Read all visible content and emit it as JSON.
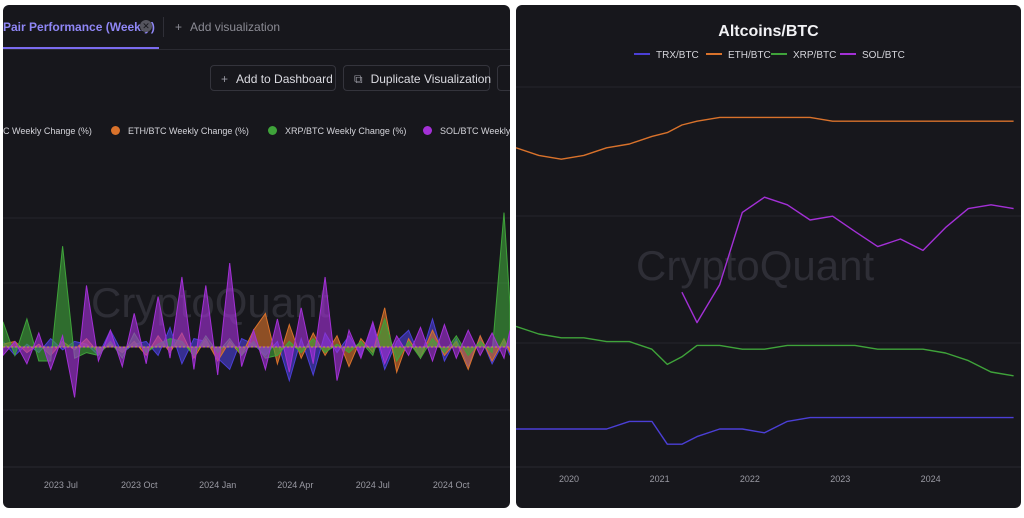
{
  "left_panel": {
    "tabs": [
      {
        "label": "Pair Performance (Weekly)",
        "active": true
      },
      {
        "label": "Add visualization",
        "active": false
      }
    ],
    "toolbar": {
      "add_to_dashboard": "Add to Dashboard",
      "duplicate_visualization": "Duplicate Visualization"
    },
    "watermark": "CryptoQuant"
  },
  "right_panel": {
    "watermark": "CryptoQuant"
  },
  "colors": {
    "trx": "#4b3fd6",
    "eth": "#d9722b",
    "xrp": "#3fa33a",
    "sol": "#a330d6",
    "tab_accent": "#7b6cf0",
    "background": "#17171c"
  },
  "icons": [
    "close-icon",
    "plus-icon",
    "duplicate-icon"
  ],
  "chart_data": [
    {
      "type": "area",
      "title": "Pair Performance (Weekly)",
      "legend": [
        "TRX/BTC Weekly Change (%)",
        "ETH/BTC Weekly Change (%)",
        "XRP/BTC Weekly Change (%)",
        "SOL/BTC Weekly Change (%)"
      ],
      "legend_visible": [
        "C Weekly Change (%)",
        "ETH/BTC Weekly Change (%)",
        "XRP/BTC Weekly Change (%)",
        "SOL/BTC Weekly C"
      ],
      "legend_placement": "top",
      "x_ticks": [
        "2023 Jul",
        "2023 Oct",
        "2024 Jan",
        "2024 Apr",
        "2024 Jul",
        "2024 Oct"
      ],
      "grid": true,
      "x_range": [
        "2023-04-24",
        "2024-12-09"
      ],
      "ylim": [
        -25,
        60
      ],
      "x": [
        "2023-04-24",
        "2023-05-08",
        "2023-05-22",
        "2023-06-05",
        "2023-06-19",
        "2023-07-03",
        "2023-07-17",
        "2023-07-31",
        "2023-08-14",
        "2023-08-28",
        "2023-09-11",
        "2023-09-25",
        "2023-10-09",
        "2023-10-23",
        "2023-11-06",
        "2023-11-20",
        "2023-12-04",
        "2023-12-18",
        "2024-01-01",
        "2024-01-15",
        "2024-01-29",
        "2024-02-12",
        "2024-02-26",
        "2024-03-11",
        "2024-03-25",
        "2024-04-08",
        "2024-04-22",
        "2024-05-06",
        "2024-05-20",
        "2024-06-03",
        "2024-06-17",
        "2024-07-01",
        "2024-07-15",
        "2024-07-29",
        "2024-08-12",
        "2024-08-26",
        "2024-09-09",
        "2024-09-23",
        "2024-10-07",
        "2024-10-21",
        "2024-11-04",
        "2024-11-18",
        "2024-12-02",
        "2024-12-09"
      ],
      "series": [
        {
          "name": "TRX/BTC Weekly Change (%)",
          "values": [
            2,
            -3,
            1,
            -2,
            3,
            -1,
            2,
            1,
            -3,
            6,
            -2,
            1,
            2,
            -3,
            7,
            -6,
            3,
            2,
            -4,
            -8,
            3,
            1,
            -3,
            2,
            -12,
            3,
            -10,
            5,
            -2,
            4,
            -3,
            8,
            -8,
            2,
            6,
            -4,
            10,
            -5,
            3,
            -7,
            4,
            -6,
            2,
            -3
          ]
        },
        {
          "name": "ETH/BTC Weekly Change (%)",
          "values": [
            1,
            2,
            -2,
            1,
            -3,
            2,
            -1,
            3,
            -2,
            1,
            -2,
            2,
            -3,
            4,
            -2,
            5,
            -4,
            3,
            -5,
            2,
            -3,
            6,
            12,
            -6,
            8,
            -4,
            5,
            -3,
            4,
            -7,
            3,
            -2,
            14,
            -9,
            3,
            -4,
            6,
            -3,
            2,
            -8,
            4,
            -5,
            3,
            -2
          ]
        },
        {
          "name": "XRP/BTC Weekly Change (%)",
          "values": [
            9,
            -3,
            10,
            -5,
            -5,
            36,
            -4,
            -2,
            -3,
            2,
            -4,
            5,
            -2,
            1,
            3,
            2,
            -3,
            4,
            -2,
            3,
            -3,
            2,
            -4,
            -3,
            2,
            -2,
            3,
            -2,
            1,
            -2,
            2,
            -3,
            10,
            -5,
            2,
            -4,
            3,
            -2,
            4,
            -3,
            2,
            -2,
            48,
            15
          ]
        },
        {
          "name": "SOL/BTC Weekly Change (%)",
          "values": [
            -3,
            2,
            -6,
            5,
            -8,
            4,
            -18,
            22,
            -5,
            6,
            -7,
            12,
            -6,
            18,
            -4,
            25,
            -8,
            22,
            -10,
            30,
            -7,
            6,
            -8,
            10,
            -9,
            14,
            -6,
            25,
            -12,
            6,
            -4,
            9,
            -6,
            4,
            -3,
            7,
            -5,
            8,
            -4,
            6,
            -3,
            5,
            -4,
            6
          ]
        }
      ]
    },
    {
      "type": "line",
      "title": "Altcoins/BTC",
      "x_ticks": [
        "2020",
        "2021",
        "2022",
        "2023",
        "2024"
      ],
      "grid": true,
      "legend_placement": "top",
      "x_range": [
        "2019-06-01",
        "2024-12-31"
      ],
      "ylim": [
        0,
        100
      ],
      "x": [
        "2019-06",
        "2019-09",
        "2019-12",
        "2020-03",
        "2020-06",
        "2020-09",
        "2020-12",
        "2021-02",
        "2021-04",
        "2021-06",
        "2021-09",
        "2021-12",
        "2022-03",
        "2022-06",
        "2022-09",
        "2022-12",
        "2023-03",
        "2023-06",
        "2023-09",
        "2023-12",
        "2024-03",
        "2024-06",
        "2024-09",
        "2024-12"
      ],
      "series": [
        {
          "name": "TRX/BTC",
          "values": [
            10,
            10,
            10,
            10,
            10,
            12,
            12,
            6,
            6,
            8,
            10,
            10,
            9,
            12,
            13,
            13,
            13,
            13,
            13,
            13,
            13,
            13,
            13,
            13
          ]
        },
        {
          "name": "ETH/BTC",
          "values": [
            84,
            82,
            81,
            82,
            84,
            85,
            87,
            88,
            90,
            91,
            92,
            92,
            92,
            92,
            92,
            91,
            91,
            91,
            91,
            91,
            91,
            91,
            91,
            91
          ]
        },
        {
          "name": "XRP/BTC",
          "values": [
            37,
            35,
            34,
            34,
            33,
            33,
            31,
            27,
            29,
            32,
            32,
            31,
            31,
            32,
            32,
            32,
            32,
            31,
            31,
            31,
            30,
            28,
            25,
            24
          ]
        },
        {
          "name": "SOL/BTC",
          "values": [
            null,
            null,
            null,
            null,
            null,
            null,
            null,
            null,
            46,
            38,
            48,
            67,
            71,
            69,
            65,
            66,
            62,
            58,
            60,
            57,
            63,
            68,
            69,
            68
          ]
        }
      ]
    }
  ]
}
